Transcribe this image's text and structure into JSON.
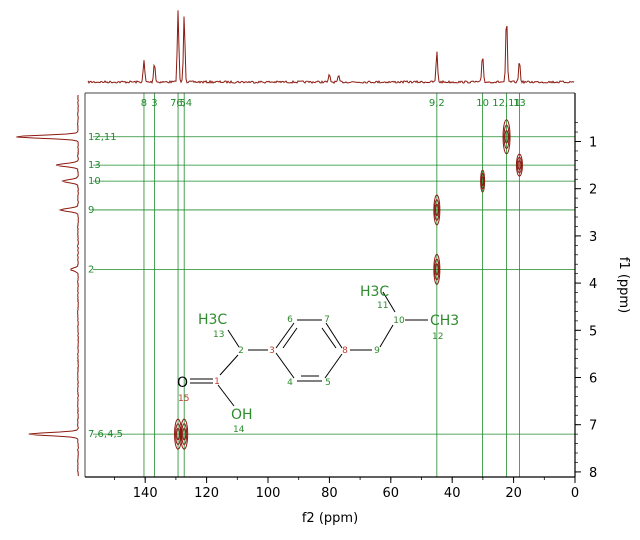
{
  "chart_data": {
    "type": "2D NMR (HSQC)",
    "xlabel": "f2 (ppm)",
    "ylabel": "f1 (ppm)",
    "xlim": [
      150,
      0
    ],
    "ylim": [
      0.6,
      8.0
    ],
    "x_ticks": [
      "140",
      "120",
      "100",
      "80",
      "60",
      "40",
      "20",
      "0"
    ],
    "y_ticks": [
      "1",
      "2",
      "3",
      "4",
      "5",
      "6",
      "7",
      "8"
    ],
    "colors": {
      "trace": "#8b1a10",
      "guide": "#1f8b2b",
      "label": "#1f8b2b",
      "mol": "#2e8b2e",
      "axis": "#000000",
      "atomnum": "#c0392b"
    },
    "carbon_labels": [
      {
        "text": "8",
        "x": 140.4
      },
      {
        "text": "3",
        "x": 137.0
      },
      {
        "text": "7,5",
        "x": 129.3
      },
      {
        "text": "6,4",
        "x": 127.3
      },
      {
        "text": "9,2",
        "x": 45.0
      },
      {
        "text": "10",
        "x": 30.1
      },
      {
        "text": "12,11",
        "x": 22.3
      },
      {
        "text": "13",
        "x": 18.1
      }
    ],
    "proton_labels": [
      {
        "text": "12,11",
        "y": 0.9
      },
      {
        "text": "13",
        "y": 1.5
      },
      {
        "text": "10",
        "y": 1.84
      },
      {
        "text": "9",
        "y": 2.45
      },
      {
        "text": "2",
        "y": 3.71
      },
      {
        "text": "7,6,4,5",
        "y": 7.2
      }
    ],
    "cross_peaks": [
      {
        "x": 22.3,
        "y": 0.9,
        "label": "12,11"
      },
      {
        "x": 18.1,
        "y": 1.5,
        "label": "13"
      },
      {
        "x": 30.1,
        "y": 1.84,
        "label": "10"
      },
      {
        "x": 45.0,
        "y": 2.45,
        "label": "9"
      },
      {
        "x": 45.0,
        "y": 3.71,
        "label": "2"
      },
      {
        "x": 129.3,
        "y": 7.2,
        "label": "7,5"
      },
      {
        "x": 127.3,
        "y": 7.2,
        "label": "6,4"
      }
    ],
    "c13_peaks": [
      {
        "x": 140.4,
        "h": 0.3
      },
      {
        "x": 137.0,
        "h": 0.28
      },
      {
        "x": 129.3,
        "h": 1.0
      },
      {
        "x": 127.3,
        "h": 0.95
      },
      {
        "x": 80.0,
        "h": 0.1
      },
      {
        "x": 77.0,
        "h": 0.08
      },
      {
        "x": 45.0,
        "h": 0.42
      },
      {
        "x": 30.1,
        "h": 0.38
      },
      {
        "x": 22.3,
        "h": 0.92
      },
      {
        "x": 18.1,
        "h": 0.3
      }
    ],
    "h1_peaks": [
      {
        "y": 0.9,
        "h": 1.0
      },
      {
        "y": 1.5,
        "h": 0.35
      },
      {
        "y": 1.84,
        "h": 0.25
      },
      {
        "y": 2.45,
        "h": 0.28
      },
      {
        "y": 3.71,
        "h": 0.12
      },
      {
        "y": 7.2,
        "h": 0.8
      }
    ]
  },
  "molecule": {
    "labels": {
      "h3c_left": "H3C",
      "n13": "13",
      "n2": "2",
      "n3": "3",
      "n6": "6",
      "n7": "7",
      "n8": "8",
      "n4": "4",
      "n5": "5",
      "n9": "9",
      "n10": "10",
      "h3c_top": "H3C",
      "n11": "11",
      "ch3_right": "CH3",
      "n12": "12",
      "n1": "1",
      "o_dbl": "O",
      "n15": "15",
      "oh": "OH",
      "n14": "14"
    }
  }
}
